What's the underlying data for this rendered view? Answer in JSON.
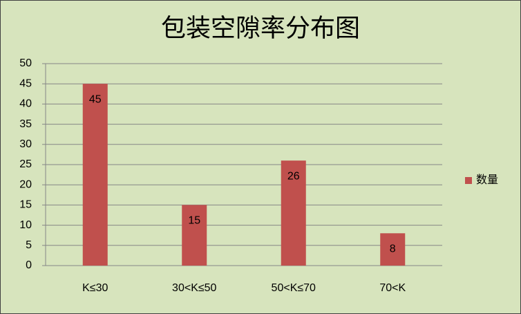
{
  "chart_data": {
    "type": "bar",
    "title": "包装空隙率分布图",
    "categories": [
      "K≤30",
      "30<K≤50",
      "50<K≤70",
      "70<K"
    ],
    "series": [
      {
        "name": "数量",
        "color": "#c0504d",
        "values": [
          45,
          15,
          26,
          8
        ]
      }
    ],
    "ylim": [
      0,
      50
    ],
    "yticks": [
      0,
      5,
      10,
      15,
      20,
      25,
      30,
      35,
      40,
      45,
      50
    ],
    "grid": true,
    "legend": "right",
    "background": "#d7e4bd"
  }
}
